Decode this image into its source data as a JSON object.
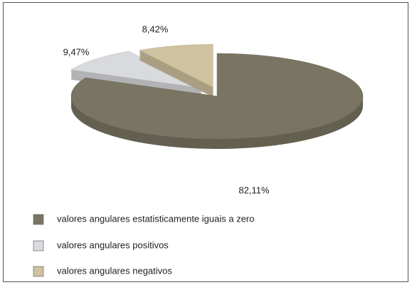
{
  "chart_data": {
    "type": "pie",
    "categories": [
      "valores angulares estatisticamente iguais a zero",
      "valores angulares positivos",
      "valores angulares negativos"
    ],
    "values": [
      82.11,
      9.47,
      8.42
    ],
    "value_labels": [
      "82,11%",
      "9,47%",
      "8,42%"
    ],
    "colors": [
      "#7a7563",
      "#d9dadd",
      "#cfc2a0"
    ],
    "legend": "bottom"
  }
}
